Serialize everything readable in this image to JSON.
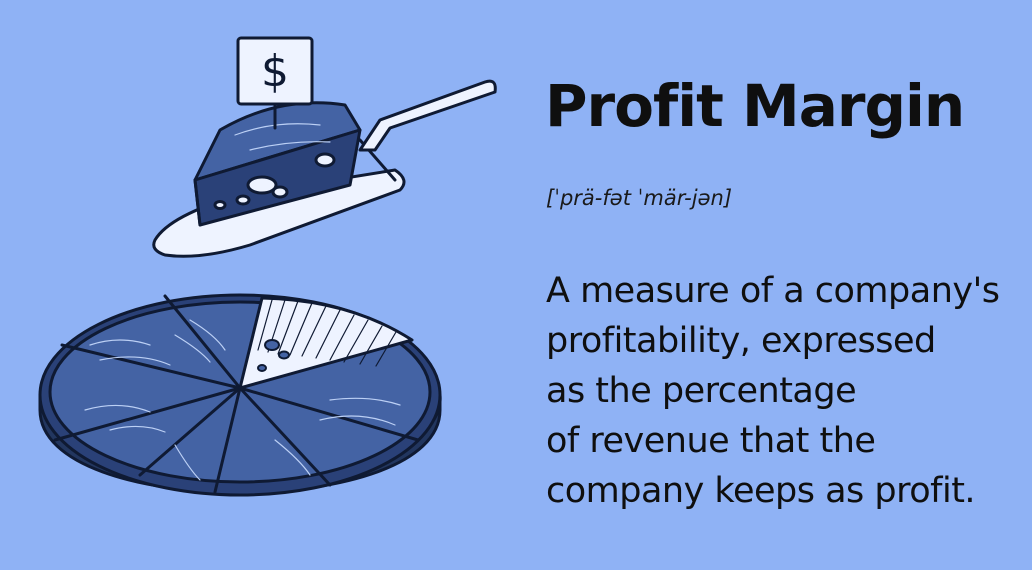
{
  "title": "Profit Margin",
  "pronunciation": "[ˈprä-fət ˈmär-jən]",
  "definition_lines": [
    "A measure of a company's",
    "profitability, expressed",
    "as the percentage",
    "of revenue that the",
    "company keeps as profit."
  ],
  "sign_text": "$",
  "colors": {
    "background": "#8fb2f5",
    "pie_fill": "#4463a4",
    "pie_dark": "#2a4178",
    "outline": "#0f1a33",
    "server": "#eef3ff"
  }
}
